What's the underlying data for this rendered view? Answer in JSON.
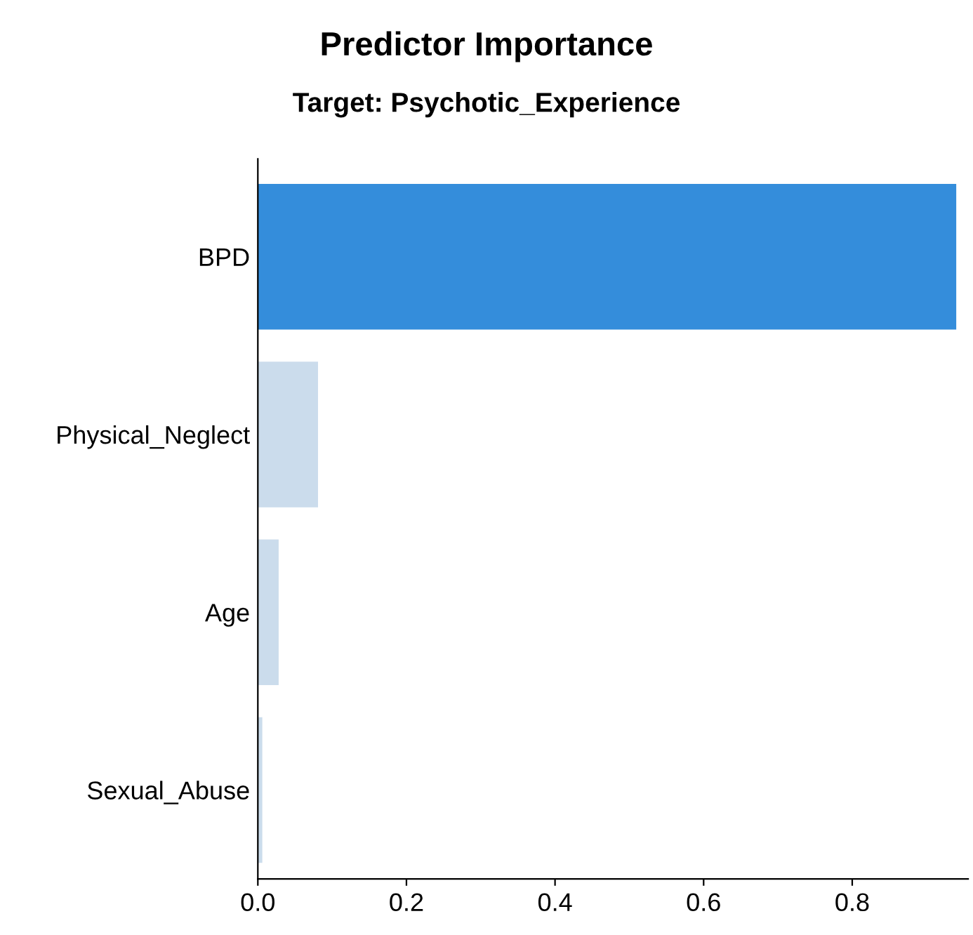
{
  "chart_data": {
    "type": "bar",
    "orientation": "horizontal",
    "title": "Predictor Importance",
    "subtitle": "Target: Psychotic_Experience",
    "categories": [
      "BPD",
      "Physical_Neglect",
      "Age",
      "Sexual_Abuse"
    ],
    "values": [
      0.94,
      0.081,
      0.028,
      0.006
    ],
    "colors": [
      "#348ddb",
      "#cbdcec",
      "#cbdcec",
      "#cbdcec"
    ],
    "xlim": [
      0,
      0.956
    ],
    "xticks": [
      {
        "value": 0,
        "label": "0.0"
      },
      0.2,
      0.4,
      0.6,
      0.8
    ],
    "grid": false,
    "legend": false
  }
}
